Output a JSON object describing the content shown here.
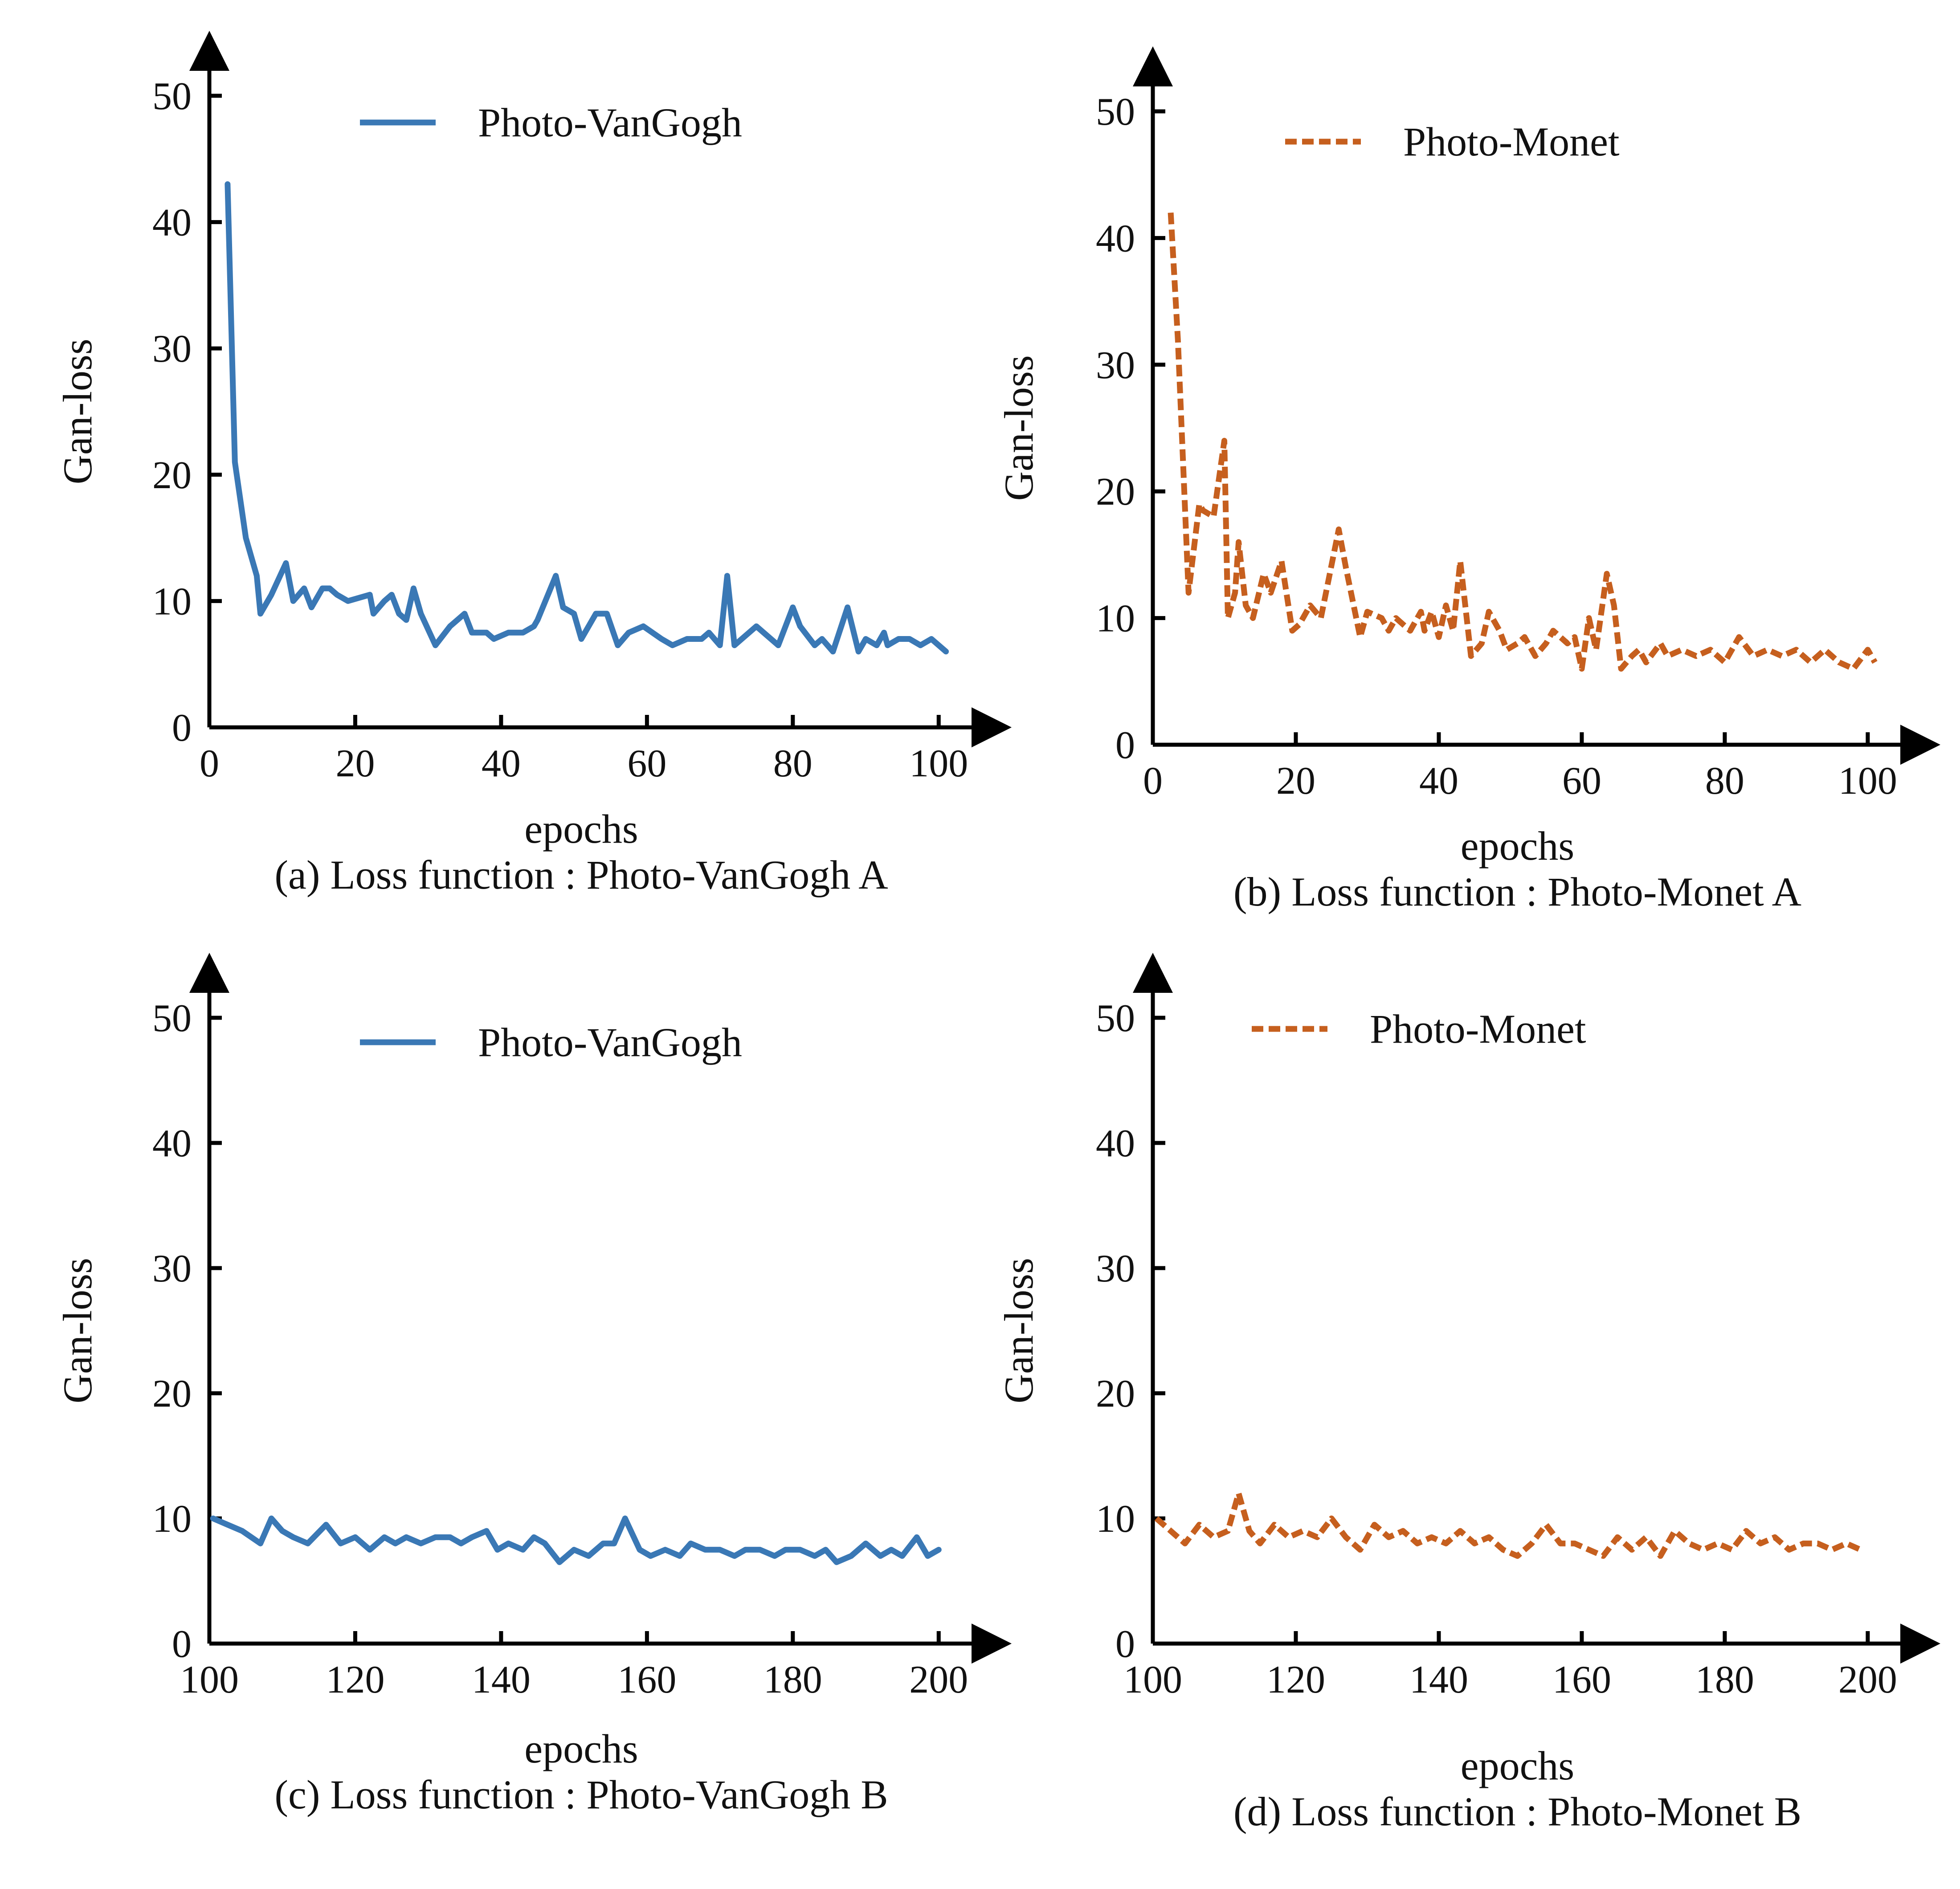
{
  "colors": {
    "vangogh": "#3a78b5",
    "monet": "#c65f1e",
    "axis": "#000000"
  },
  "chart_data": [
    {
      "type": "line",
      "caption": "(a) Loss function : Photo-VanGogh A",
      "xlabel": "epochs",
      "ylabel": "Gan-loss",
      "xlim": [
        0,
        102
      ],
      "ylim": [
        0,
        50
      ],
      "xticks": [
        0,
        20,
        40,
        60,
        80,
        100
      ],
      "yticks": [
        0,
        10,
        20,
        30,
        40,
        50
      ],
      "grid": false,
      "legend_position": "top-center",
      "series": [
        {
          "name": "Photo-VanGogh",
          "style": "solid",
          "color": "#3a78b5",
          "x": [
            2.5,
            3.5,
            5,
            6.5,
            7,
            8.5,
            10.5,
            11.5,
            13,
            14,
            15.5,
            16.5,
            17.5,
            19,
            22,
            22.5,
            24,
            25,
            26,
            27,
            28,
            29,
            31,
            33,
            35,
            36,
            38,
            39,
            41,
            43,
            44.5,
            45,
            47.5,
            48.5,
            50,
            51,
            53,
            54.5,
            56,
            57.5,
            59.5,
            62,
            63.5,
            65.5,
            67.5,
            68.5,
            70,
            71,
            72,
            73,
            75,
            78,
            80,
            81,
            83,
            84,
            85.5,
            87.5,
            89,
            90,
            91.5,
            92.5,
            93,
            94.5,
            96,
            97.5,
            99,
            101
          ],
          "y": [
            43,
            21,
            15,
            12,
            9,
            10.5,
            13,
            10,
            11,
            9.5,
            11,
            11,
            10.5,
            10,
            10.5,
            9,
            10,
            10.5,
            9,
            8.5,
            11,
            9,
            6.5,
            8,
            9,
            7.5,
            7.5,
            7,
            7.5,
            7.5,
            8,
            8.5,
            12,
            9.5,
            9,
            7,
            9,
            9,
            6.5,
            7.5,
            8,
            7,
            6.5,
            7,
            7,
            7.5,
            6.5,
            12,
            6.5,
            7,
            8,
            6.5,
            9.5,
            8,
            6.5,
            7,
            6,
            9.5,
            6,
            7,
            6.5,
            7.5,
            6.5,
            7,
            7,
            6.5,
            7,
            6
          ]
        }
      ]
    },
    {
      "type": "line",
      "caption": "(b) Loss function : Photo-Monet A",
      "xlabel": "epochs",
      "ylabel": "Gan-loss",
      "xlim": [
        0,
        102
      ],
      "ylim": [
        0,
        50
      ],
      "xticks": [
        0,
        20,
        40,
        60,
        80,
        100
      ],
      "yticks": [
        0,
        10,
        20,
        30,
        40,
        50
      ],
      "grid": false,
      "legend_position": "top-center",
      "series": [
        {
          "name": "Photo-Monet",
          "style": "dashed",
          "color": "#c65f1e",
          "x": [
            2.5,
            3.5,
            5,
            6.5,
            7,
            8.5,
            10,
            10.5,
            11.5,
            12,
            13,
            14,
            15.5,
            16.5,
            18,
            19.5,
            20.5,
            22,
            23.5,
            26,
            27,
            29,
            30,
            32,
            33,
            34,
            35,
            36,
            37.5,
            38,
            39,
            40,
            41,
            42,
            43,
            44.5,
            46,
            47,
            48.5,
            49.5,
            51,
            52,
            53.5,
            55,
            56,
            58,
            59,
            60,
            61,
            62,
            63.5,
            64.5,
            65.5,
            67,
            68,
            69,
            71,
            72,
            74,
            76,
            78,
            80,
            82,
            84,
            86,
            88,
            90,
            92,
            94,
            96,
            98,
            100,
            101
          ],
          "y": [
            42,
            32,
            12,
            19,
            18.5,
            18,
            24,
            10,
            12,
            16,
            11,
            10,
            13.5,
            12,
            14.5,
            9,
            9.5,
            11,
            10,
            17,
            14,
            8.5,
            10.5,
            10,
            9,
            10,
            9.5,
            9,
            10.5,
            9,
            10.5,
            8.5,
            11,
            9,
            14.5,
            7,
            8,
            10.5,
            9,
            7.5,
            8,
            8.5,
            7,
            8,
            9,
            8,
            8.5,
            6,
            10,
            7.5,
            13.5,
            11,
            6,
            7,
            7.5,
            6.5,
            8,
            7,
            7.5,
            7,
            7.5,
            6.5,
            8.5,
            7,
            7.5,
            7,
            7.5,
            6.5,
            7.5,
            6.5,
            6,
            7.5,
            6.5
          ]
        }
      ]
    },
    {
      "type": "line",
      "caption": "(c) Loss function : Photo-VanGogh B",
      "xlabel": "epochs",
      "ylabel": "Gan-loss",
      "xlim": [
        100,
        202
      ],
      "ylim": [
        0,
        50
      ],
      "xticks": [
        100,
        120,
        140,
        160,
        180,
        200
      ],
      "yticks": [
        0,
        10,
        20,
        30,
        40,
        50
      ],
      "grid": false,
      "legend_position": "top-center",
      "series": [
        {
          "name": "Photo-VanGogh",
          "style": "solid",
          "color": "#3a78b5",
          "x": [
            100.5,
            102.5,
            104.5,
            107,
            108.5,
            110,
            111.5,
            113.5,
            116,
            118,
            120,
            122,
            124,
            125.5,
            127,
            129,
            131,
            133,
            134.5,
            136,
            138,
            139.5,
            141,
            143,
            144.5,
            146,
            148,
            150,
            152,
            154,
            155.5,
            157,
            159,
            160.5,
            162.5,
            164.5,
            166,
            168,
            170,
            172,
            173.5,
            175.5,
            177.5,
            179,
            181,
            183,
            184.5,
            186,
            188,
            190,
            192,
            193.5,
            195,
            197,
            198.5,
            200
          ],
          "y": [
            10,
            9.5,
            9,
            8,
            10,
            9,
            8.5,
            8,
            9.5,
            8,
            8.5,
            7.5,
            8.5,
            8,
            8.5,
            8,
            8.5,
            8.5,
            8,
            8.5,
            9,
            7.5,
            8,
            7.5,
            8.5,
            8,
            6.5,
            7.5,
            7,
            8,
            8,
            10,
            7.5,
            7,
            7.5,
            7,
            8,
            7.5,
            7.5,
            7,
            7.5,
            7.5,
            7,
            7.5,
            7.5,
            7,
            7.5,
            6.5,
            7,
            8,
            7,
            7.5,
            7,
            8.5,
            7,
            7.5
          ]
        }
      ]
    },
    {
      "type": "line",
      "caption": "(d) Loss function : Photo-Monet B",
      "xlabel": "epochs",
      "ylabel": "Gan-loss",
      "xlim": [
        100,
        202
      ],
      "ylim": [
        0,
        50
      ],
      "xticks": [
        100,
        120,
        140,
        160,
        180,
        200
      ],
      "yticks": [
        0,
        10,
        20,
        30,
        40,
        50
      ],
      "grid": false,
      "legend_position": "top-center",
      "series": [
        {
          "name": "Photo-Monet",
          "style": "dashed",
          "color": "#c65f1e",
          "x": [
            100.5,
            102.5,
            104.5,
            106.5,
            108.5,
            110.5,
            112,
            113.5,
            115,
            117,
            119,
            121,
            123,
            125,
            127,
            129,
            131,
            133,
            135,
            137,
            139,
            141,
            143,
            145,
            147,
            149,
            151,
            153,
            155,
            157,
            159,
            161,
            163,
            165,
            167,
            169,
            171,
            173,
            175,
            177,
            179,
            181,
            183,
            185,
            187,
            189,
            191,
            193,
            195,
            197,
            199
          ],
          "y": [
            10,
            9,
            8,
            9.5,
            8.5,
            9,
            12,
            9,
            8,
            9.5,
            8.5,
            9,
            8.5,
            10,
            8.5,
            7.5,
            9.5,
            8.5,
            9,
            8,
            8.5,
            8,
            9,
            8,
            8.5,
            7.5,
            7,
            8,
            9.5,
            8,
            8,
            7.5,
            7,
            8.5,
            7.5,
            8.5,
            7,
            9,
            8,
            7.5,
            8,
            7.5,
            9,
            8,
            8.5,
            7.5,
            8,
            8,
            7.5,
            8,
            7.5
          ]
        }
      ]
    }
  ]
}
